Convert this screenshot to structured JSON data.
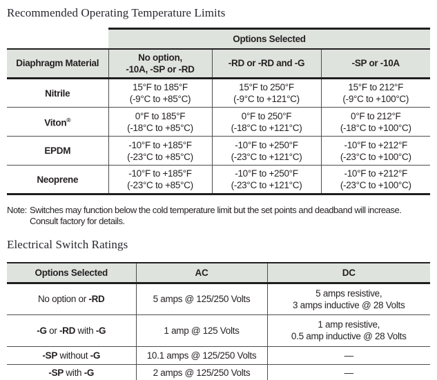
{
  "colors": {
    "header_bg": "#dfe3de",
    "border_dark": "#1e1e1e",
    "border_light": "#4b4b4b",
    "text": "#231f20"
  },
  "table1": {
    "title": "Recommended Operating Temperature Limits",
    "options_header": "Options Selected",
    "col_headers": {
      "material": "Diaphragm Material",
      "c1_line1": "No option,",
      "c1_line2": "-10A, -SP or -RD",
      "c2": "-RD or -RD and -G",
      "c3": "-SP or -10A"
    },
    "rows": [
      {
        "material": "Nitrile",
        "sup": "",
        "cells": [
          {
            "f": "15°F to 185°F",
            "c": "(-9°C to +85°C)"
          },
          {
            "f": "15°F to 250°F",
            "c": "(-9°C to +121°C)"
          },
          {
            "f": "15°F to 212°F",
            "c": "(-9°C to +100°C)"
          }
        ]
      },
      {
        "material": "Viton",
        "sup": "®",
        "cells": [
          {
            "f": "0°F to 185°F",
            "c": "(-18°C to +85°C)"
          },
          {
            "f": "0°F to 250°F",
            "c": "(-18°C to +121°C)"
          },
          {
            "f": "0°F to 212°F",
            "c": "(-18°C to +100°C)"
          }
        ]
      },
      {
        "material": "EPDM",
        "sup": "",
        "cells": [
          {
            "f": "-10°F to +185°F",
            "c": "(-23°C to +85°C)"
          },
          {
            "f": "-10°F to +250°F",
            "c": "(-23°C to +121°C)"
          },
          {
            "f": "-10°F to +212°F",
            "c": "(-23°C to +100°C)"
          }
        ]
      },
      {
        "material": "Neoprene",
        "sup": "",
        "cells": [
          {
            "f": "-10°F to +185°F",
            "c": "(-23°C to +85°C)"
          },
          {
            "f": "-10°F to +250°F",
            "c": "(-23°C to +121°C)"
          },
          {
            "f": "-10°F to +212°F",
            "c": "(-23°C to +100°C)"
          }
        ]
      }
    ]
  },
  "note": {
    "label": "Note:",
    "line1": "Switches may function below the cold temperature limit but the set points and deadband will increase.",
    "line2": "Consult factory for details."
  },
  "table2": {
    "title": "Electrical Switch Ratings",
    "headers": [
      "Options Selected",
      "AC",
      "DC"
    ],
    "rows": [
      {
        "option": [
          {
            "text": "No option or ",
            "bold": false
          },
          {
            "text": "-RD",
            "bold": true
          }
        ],
        "ac": "5 amps @ 125/250 Volts",
        "dc": [
          "5 amps resistive,",
          "3 amps inductive @ 28 Volts"
        ]
      },
      {
        "option": [
          {
            "text": "-G",
            "bold": true
          },
          {
            "text": " or ",
            "bold": false
          },
          {
            "text": "-RD",
            "bold": true
          },
          {
            "text": " with ",
            "bold": false
          },
          {
            "text": "-G",
            "bold": true
          }
        ],
        "ac": "1 amp @ 125 Volts",
        "dc": [
          "1 amp resistive,",
          "0.5 amp inductive @ 28 Volts"
        ]
      },
      {
        "option": [
          {
            "text": "-SP",
            "bold": true
          },
          {
            "text": " without ",
            "bold": false
          },
          {
            "text": "-G",
            "bold": true
          }
        ],
        "ac": "10.1 amps @ 125/250 Volts",
        "dc": [
          "—"
        ]
      },
      {
        "option": [
          {
            "text": "-SP",
            "bold": true
          },
          {
            "text": " with ",
            "bold": false
          },
          {
            "text": "-G",
            "bold": true
          }
        ],
        "ac": "2 amps @ 125/250 Volts",
        "dc": [
          "—"
        ]
      }
    ]
  }
}
